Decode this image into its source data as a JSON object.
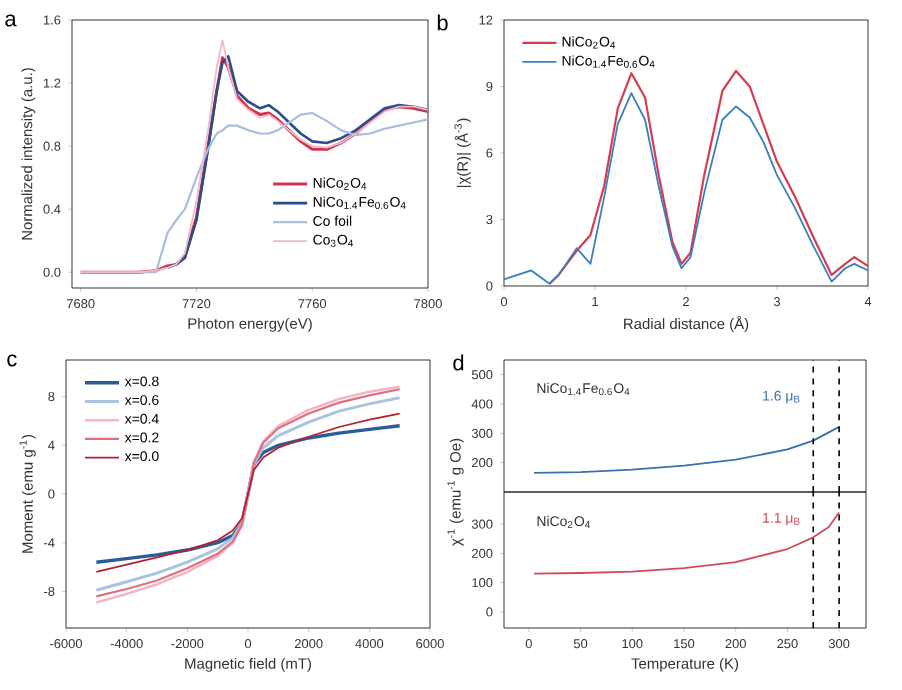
{
  "chart_data": [
    {
      "type": "line",
      "annotations": [
        "a"
      ],
      "xlabel": "Photon energy(eV)",
      "ylabel": "Normalized intensity (a.u.)",
      "xlim": [
        7677,
        7800
      ],
      "ylim": [
        -0.1,
        1.6
      ],
      "xticks": [
        7680,
        7720,
        7760,
        7800
      ],
      "yticks": [
        {
          "value": 0,
          "label": "0.0"
        },
        0.4,
        0.8,
        1.2,
        1.6
      ],
      "legend": "bottom right",
      "x": [
        7680,
        7700,
        7706,
        7710,
        7713,
        7716,
        7720,
        7724,
        7727,
        7729,
        7731,
        7734,
        7738,
        7742,
        7745,
        7748,
        7752,
        7756,
        7760,
        7765,
        7770,
        7775,
        7780,
        7785,
        7790,
        7795,
        7800
      ],
      "series": [
        {
          "name": "NiCo$_{2}$O$_{4}$",
          "color": "#d0334a",
          "values": [
            0,
            0,
            0.01,
            0.04,
            0.05,
            0.1,
            0.35,
            0.8,
            1.15,
            1.36,
            1.3,
            1.12,
            1.04,
            1.0,
            1.01,
            0.97,
            0.9,
            0.83,
            0.78,
            0.78,
            0.82,
            0.88,
            0.96,
            1.03,
            1.05,
            1.04,
            1.02
          ]
        },
        {
          "name": "NiCo$_{1.4}$Fe$_{0.6}$O$_{4}$",
          "color": "#2b4d8c",
          "values": [
            null,
            null,
            null,
            0.03,
            0.05,
            0.09,
            0.33,
            0.78,
            1.15,
            1.33,
            1.37,
            1.15,
            1.08,
            1.04,
            1.06,
            1.02,
            0.95,
            0.88,
            0.83,
            0.82,
            0.85,
            0.9,
            0.97,
            1.04,
            1.06,
            1.05,
            1.03
          ]
        },
        {
          "name": "Co foil",
          "color": "#a8bde0",
          "values": [
            0,
            0,
            0,
            0.25,
            0.33,
            0.4,
            0.6,
            0.78,
            0.88,
            0.9,
            0.93,
            0.93,
            0.9,
            0.88,
            0.88,
            0.9,
            0.95,
            1.0,
            1.01,
            0.96,
            0.9,
            0.87,
            0.88,
            0.91,
            0.93,
            0.95,
            0.97
          ]
        },
        {
          "name": "Co$_{3}$O$_{4}$",
          "color": "#f0b8c8",
          "values": [
            0,
            0,
            0.01,
            0.03,
            0.05,
            0.12,
            0.45,
            0.9,
            1.3,
            1.47,
            1.3,
            1.1,
            1.03,
            0.98,
            1.0,
            0.96,
            0.9,
            0.84,
            0.8,
            0.79,
            0.82,
            0.88,
            0.95,
            1.02,
            1.05,
            1.05,
            1.03
          ]
        }
      ]
    },
    {
      "type": "line",
      "annotations": [
        "b"
      ],
      "xlabel": "Radial distance (Å)",
      "ylabel": "|χ(R)| (Å$^{-3}$)",
      "xlim": [
        0,
        4
      ],
      "ylim": [
        0,
        12
      ],
      "xticks": [
        0,
        1,
        2,
        3,
        4
      ],
      "yticks": [
        0,
        3,
        6,
        9,
        12
      ],
      "legend": "top left",
      "x": [
        0,
        0.3,
        0.5,
        0.6,
        0.8,
        0.95,
        1.1,
        1.25,
        1.4,
        1.55,
        1.7,
        1.85,
        1.95,
        2.05,
        2.2,
        2.4,
        2.55,
        2.7,
        2.85,
        3.0,
        3.2,
        3.4,
        3.6,
        3.75,
        3.85,
        4.0
      ],
      "series": [
        {
          "name": "NiCo$_{2}$O$_{4}$",
          "color": "#d43d51",
          "values": [
            null,
            null,
            0.1,
            0.5,
            1.6,
            2.3,
            4.5,
            8.0,
            9.6,
            8.5,
            5.0,
            2.0,
            1.0,
            1.5,
            5.0,
            8.8,
            9.7,
            9.0,
            7.3,
            5.6,
            4.0,
            2.2,
            0.5,
            1.0,
            1.3,
            0.9
          ]
        },
        {
          "name": "NiCo$_{1.4}$Fe$_{0.6}$O$_{4}$",
          "color": "#3a7ebf",
          "values": [
            0.3,
            0.7,
            0.1,
            0.5,
            1.7,
            1.0,
            4.0,
            7.3,
            8.7,
            7.5,
            4.5,
            1.8,
            0.8,
            1.3,
            4.2,
            7.5,
            8.1,
            7.6,
            6.5,
            5.0,
            3.5,
            1.8,
            0.2,
            0.8,
            1.0,
            0.7
          ]
        }
      ]
    },
    {
      "type": "line",
      "annotations": [
        "c"
      ],
      "xlabel": "Magnetic field (mT)",
      "ylabel": "Moment (emu g$^{-1}$)",
      "xlim": [
        -6000,
        6000
      ],
      "ylim": [
        -11,
        11
      ],
      "xticks": [
        -6000,
        -4000,
        -2000,
        0,
        2000,
        4000,
        6000
      ],
      "yticks": [
        -8,
        -4,
        0,
        4,
        8
      ],
      "legend": "top left",
      "x": [
        -5000,
        -4000,
        -3000,
        -2000,
        -1000,
        -500,
        -200,
        0,
        200,
        500,
        1000,
        2000,
        3000,
        4000,
        5000
      ],
      "series": [
        {
          "name": "x=0.8",
          "color": "#2a5b9a",
          "values": [
            -5.6,
            -5.3,
            -5.0,
            -4.6,
            -4.0,
            -3.4,
            -2.4,
            0,
            2.5,
            3.4,
            4.0,
            4.6,
            5.0,
            5.3,
            5.6
          ]
        },
        {
          "name": "x=0.6",
          "color": "#a9c4e0",
          "values": [
            -7.9,
            -7.2,
            -6.5,
            -5.6,
            -4.5,
            -3.6,
            -2.4,
            0,
            2.5,
            3.8,
            4.8,
            5.9,
            6.8,
            7.4,
            7.9
          ]
        },
        {
          "name": "x=0.4",
          "color": "#f2b6c6",
          "values": [
            -8.9,
            -8.2,
            -7.4,
            -6.4,
            -5.1,
            -4.0,
            -2.6,
            0,
            2.6,
            4.3,
            5.6,
            6.9,
            7.8,
            8.4,
            8.8
          ]
        },
        {
          "name": "x=0.2",
          "color": "#e0707f",
          "values": [
            -8.4,
            -7.8,
            -7.1,
            -6.1,
            -4.9,
            -3.9,
            -2.5,
            0,
            2.6,
            4.2,
            5.4,
            6.6,
            7.5,
            8.1,
            8.6
          ]
        },
        {
          "name": "x=0.0",
          "color": "#b81f2f",
          "values": [
            -6.4,
            -5.8,
            -5.2,
            -4.6,
            -3.8,
            -3.0,
            -2.0,
            0,
            2.0,
            3.0,
            3.8,
            4.7,
            5.5,
            6.1,
            6.6
          ]
        }
      ]
    },
    {
      "type": "line",
      "annotations": [
        "d",
        "1.6 μ$_{B}$"
      ],
      "xlim": [
        -24,
        326
      ],
      "ylim": [
        100,
        550
      ],
      "yticks": [
        200,
        300,
        400,
        500
      ],
      "tick_labels": "y",
      "ref_lines": [
        {
          "axis": "x",
          "value": 275,
          "line_style": "dashed",
          "color": "#000000"
        },
        {
          "axis": "x",
          "value": 300,
          "line_style": "dashed",
          "color": "#000000"
        }
      ],
      "x": [
        5,
        50,
        100,
        150,
        200,
        250,
        275,
        300
      ],
      "series": [
        {
          "name": "NiCo$_{1.4}$Fe$_{0.6}$O$_{4}$",
          "color": "#3a6fb0",
          "values": [
            165,
            168,
            176,
            190,
            210,
            245,
            275,
            322
          ]
        }
      ]
    },
    {
      "type": "line",
      "annotations": [
        "1.1 μ$_{B}$"
      ],
      "xlabel": "Temperature (K)",
      "ylabel": "χ$^{-1}$ (emu$^{-1}$ g Oe)",
      "xlim": [
        -24,
        326
      ],
      "ylim": [
        -55,
        410
      ],
      "xticks": [
        0,
        50,
        100,
        150,
        200,
        250,
        300
      ],
      "yticks": [
        0,
        100,
        200,
        300
      ],
      "ref_lines": [
        {
          "axis": "x",
          "value": 275,
          "line_style": "dashed",
          "color": "#000000"
        },
        {
          "axis": "x",
          "value": 300,
          "line_style": "dashed",
          "color": "#000000"
        }
      ],
      "x": [
        5,
        50,
        100,
        150,
        200,
        250,
        275,
        290,
        300
      ],
      "series": [
        {
          "name": "NiCo$_{2}$O$_{4}$",
          "color": "#d04a5e",
          "values": [
            131,
            133,
            138,
            150,
            170,
            215,
            255,
            290,
            340
          ]
        }
      ]
    }
  ]
}
